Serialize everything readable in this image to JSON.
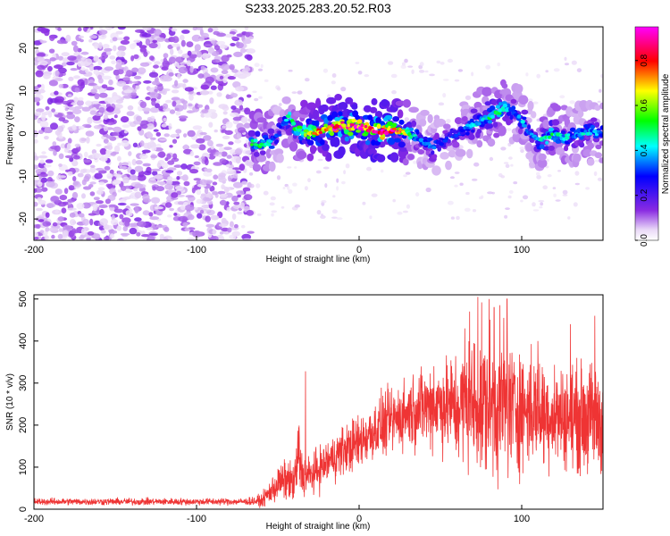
{
  "title": "S233.2025.283.20.52.R03",
  "chart_data": [
    {
      "type": "heatmap",
      "xlabel": "Height of straight line (km)",
      "ylabel": "Frequency (Hz)",
      "xlim": [
        -200,
        150
      ],
      "ylim": [
        -25,
        25
      ],
      "xticks": [
        "-200",
        "-100",
        "0",
        "100"
      ],
      "xtick_values": [
        -200,
        -100,
        0,
        100
      ],
      "yticks": [
        "20",
        "10",
        "0",
        "-10",
        "-20"
      ],
      "ytick_values": [
        20,
        10,
        0,
        -10,
        -20
      ],
      "colorbar": {
        "label": "Normalized spectral amplitude",
        "range": [
          0,
          0.95
        ],
        "ticks": [
          "0.0",
          "0.2",
          "0.4",
          "0.6",
          "0.8"
        ],
        "tick_values": [
          0.0,
          0.2,
          0.4,
          0.6,
          0.8
        ],
        "colors": [
          "#ffffff",
          "#8a2be2",
          "#0000ff",
          "#00ffff",
          "#00ff00",
          "#ffff00",
          "#ff0000",
          "#ff00ff"
        ]
      },
      "ridge": {
        "x": [
          -66,
          -60,
          -55,
          -52,
          -48,
          -44,
          -40,
          -35,
          -30,
          -25,
          -20,
          -15,
          -10,
          -5,
          0,
          5,
          10,
          15,
          20,
          25,
          30,
          35,
          40,
          45,
          50,
          55,
          60,
          65,
          70,
          75,
          80,
          85,
          90,
          95,
          100,
          105,
          110,
          115,
          120,
          125,
          130,
          135,
          140,
          145,
          150
        ],
        "y": [
          -2,
          -2.5,
          -2,
          -1,
          1,
          4,
          2,
          0,
          0,
          0.5,
          1,
          1.5,
          2,
          1.5,
          2,
          1,
          1,
          0.5,
          1,
          0.5,
          0,
          -1,
          -2,
          -3,
          -2,
          -1,
          0,
          1,
          2,
          3,
          4,
          5,
          6,
          5,
          3,
          0,
          -2,
          -1,
          0,
          -1,
          -0.5,
          0,
          0.5,
          0,
          0
        ],
        "amplitude": [
          0.55,
          0.5,
          0.45,
          0.3,
          0.3,
          0.5,
          0.5,
          0.6,
          0.7,
          0.8,
          0.85,
          0.9,
          0.9,
          0.85,
          0.9,
          0.85,
          0.9,
          0.95,
          0.9,
          0.8,
          0.55,
          0.4,
          0.35,
          0.4,
          0.3,
          0.3,
          0.3,
          0.35,
          0.4,
          0.45,
          0.5,
          0.5,
          0.45,
          0.4,
          0.4,
          0.35,
          0.4,
          0.5,
          0.5,
          0.45,
          0.4,
          0.4,
          0.45,
          0.4,
          0.35
        ]
      },
      "noise_region": [
        -200,
        -66
      ]
    },
    {
      "type": "line",
      "xlabel": "Height of straight line (km)",
      "ylabel": "SNR (10 * v/v)",
      "xlim": [
        -200,
        150
      ],
      "ylim": [
        0,
        510
      ],
      "xticks": [
        "-200",
        "-100",
        "0",
        "100"
      ],
      "xtick_values": [
        -200,
        -100,
        0,
        100
      ],
      "yticks": [
        "500",
        "400",
        "300",
        "200",
        "100",
        "0"
      ],
      "ytick_values": [
        500,
        400,
        300,
        200,
        100,
        0
      ],
      "color": "#ef3434",
      "envelope": {
        "x": [
          -200,
          -150,
          -100,
          -70,
          -60,
          -55,
          -50,
          -45,
          -40,
          -37,
          -35,
          -30,
          -20,
          -10,
          0,
          10,
          20,
          30,
          40,
          50,
          60,
          70,
          80,
          90,
          100,
          110,
          120,
          130,
          140,
          150
        ],
        "mean": [
          18,
          18,
          18,
          18,
          20,
          40,
          60,
          70,
          60,
          130,
          80,
          80,
          110,
          140,
          160,
          190,
          210,
          230,
          245,
          250,
          240,
          250,
          250,
          245,
          240,
          235,
          225,
          220,
          215,
          215
        ],
        "spread": [
          7,
          7,
          7,
          7,
          12,
          25,
          35,
          40,
          40,
          90,
          40,
          40,
          45,
          50,
          55,
          60,
          65,
          70,
          80,
          90,
          110,
          140,
          150,
          140,
          120,
          110,
          100,
          100,
          110,
          120
        ]
      },
      "peaks": [
        {
          "x": -33,
          "y": 328
        },
        {
          "x": 46,
          "y": 340
        },
        {
          "x": 65,
          "y": 430
        },
        {
          "x": 68,
          "y": 470
        },
        {
          "x": 73,
          "y": 505
        },
        {
          "x": 80,
          "y": 500
        },
        {
          "x": 83,
          "y": 480
        },
        {
          "x": 89,
          "y": 455
        },
        {
          "x": 91,
          "y": 500
        },
        {
          "x": 110,
          "y": 400
        },
        {
          "x": 130,
          "y": 440
        },
        {
          "x": 145,
          "y": 460
        }
      ]
    }
  ]
}
